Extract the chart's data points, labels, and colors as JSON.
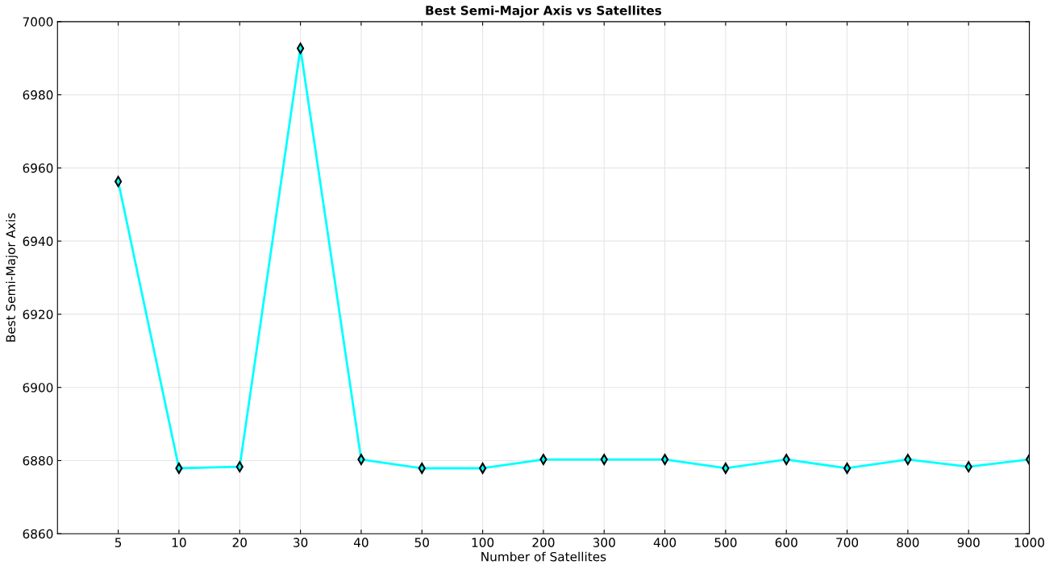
{
  "chart_data": {
    "type": "line",
    "title": "Best Semi-Major Axis vs Satellites",
    "xlabel": "Number of Satellites",
    "ylabel": "Best Semi-Major Axis",
    "categories": [
      null,
      "5",
      "10",
      "20",
      "30",
      "40",
      "50",
      "100",
      "200",
      "300",
      "400",
      "500",
      "600",
      "700",
      "800",
      "900",
      "1000"
    ],
    "series": [
      {
        "color": "#00ffff",
        "values": [
          null,
          6956.3,
          6877.9,
          6878.3,
          6992.7,
          6880.3,
          6877.9,
          6877.9,
          6880.3,
          6880.3,
          6880.3,
          6877.9,
          6880.3,
          6877.9,
          6880.3,
          6878.3,
          6880.3
        ]
      }
    ],
    "ylim": [
      6860,
      7000
    ],
    "yticks": [
      6860,
      6880,
      6900,
      6920,
      6940,
      6960,
      6980,
      7000
    ],
    "grid": true,
    "marker": "diamond",
    "line_style": "solid"
  }
}
